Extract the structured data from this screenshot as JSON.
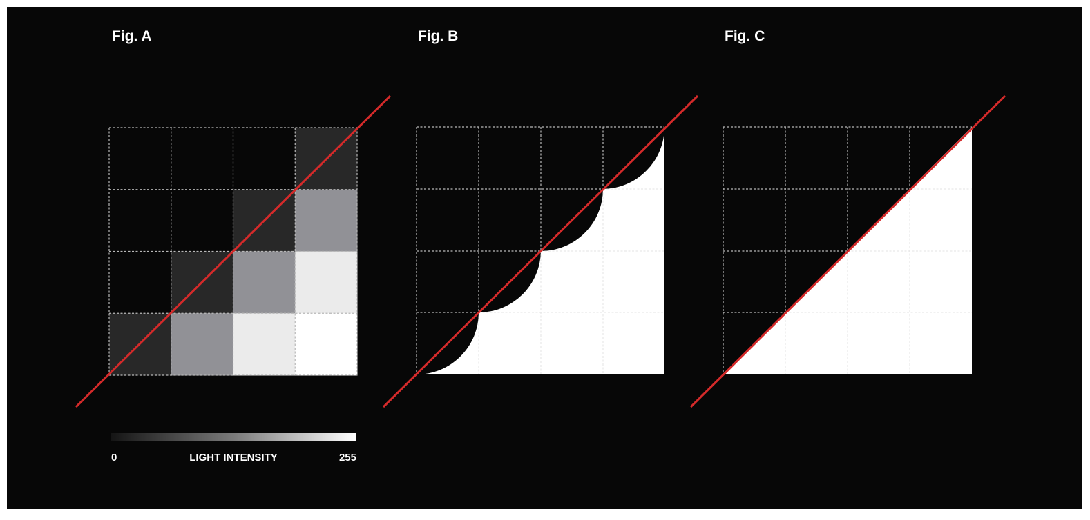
{
  "colors": {
    "background": "#070707",
    "diagonal": "#d42a2a",
    "white": "#ffffff"
  },
  "figures": [
    {
      "id": "a",
      "title": "Fig. A",
      "grid_size": 4,
      "intensity_rows_top_to_bottom": [
        [
          0,
          0,
          0,
          40
        ],
        [
          0,
          0,
          40,
          145
        ],
        [
          0,
          40,
          145,
          235
        ],
        [
          40,
          145,
          235,
          255
        ]
      ]
    },
    {
      "id": "b",
      "title": "Fig. B",
      "grid_size": 4,
      "fill_style": "quarter-circle-steps"
    },
    {
      "id": "c",
      "title": "Fig. C",
      "grid_size": 4,
      "fill_style": "straight-triangle"
    }
  ],
  "legend": {
    "min_label": "0",
    "label": "LIGHT INTENSITY",
    "max_label": "255",
    "min_value": 0,
    "max_value": 255
  }
}
